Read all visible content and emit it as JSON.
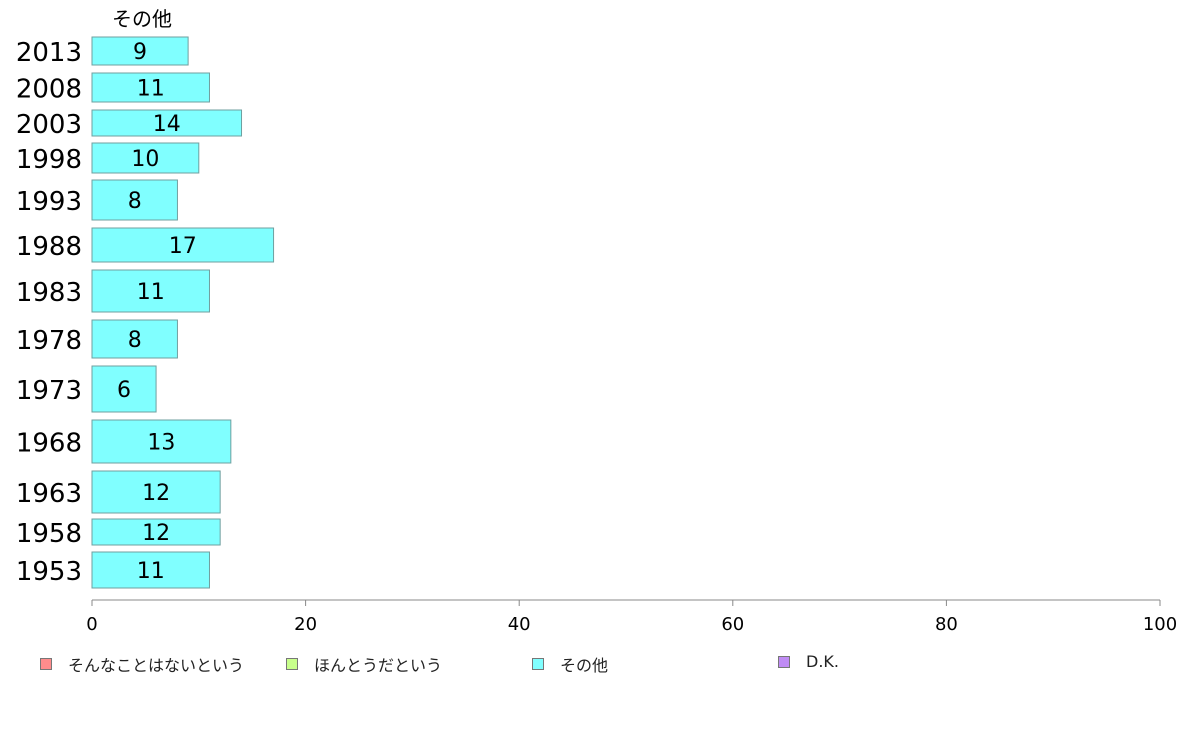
{
  "chart_data": {
    "type": "bar",
    "orientation": "horizontal",
    "title": "その他",
    "categories": [
      "2013",
      "2008",
      "2003",
      "1998",
      "1993",
      "1988",
      "1983",
      "1978",
      "1973",
      "1968",
      "1963",
      "1958",
      "1953"
    ],
    "series": [
      {
        "name": "その他",
        "values": [
          9,
          11,
          14,
          10,
          8,
          17,
          11,
          8,
          6,
          13,
          12,
          12,
          11
        ]
      }
    ],
    "xlim": [
      0,
      100
    ],
    "xticks": [
      0,
      20,
      40,
      60,
      80,
      100
    ],
    "grid": false,
    "legend_position": "bottom",
    "legend": [
      {
        "label": "そんなことはないという",
        "color": "#ff8c8c"
      },
      {
        "label": "ほんとうだという",
        "color": "#c8ff8c"
      },
      {
        "label": "その他",
        "color": "#80ffff"
      },
      {
        "label": "D.K.",
        "color": "#c08cf5"
      }
    ]
  }
}
